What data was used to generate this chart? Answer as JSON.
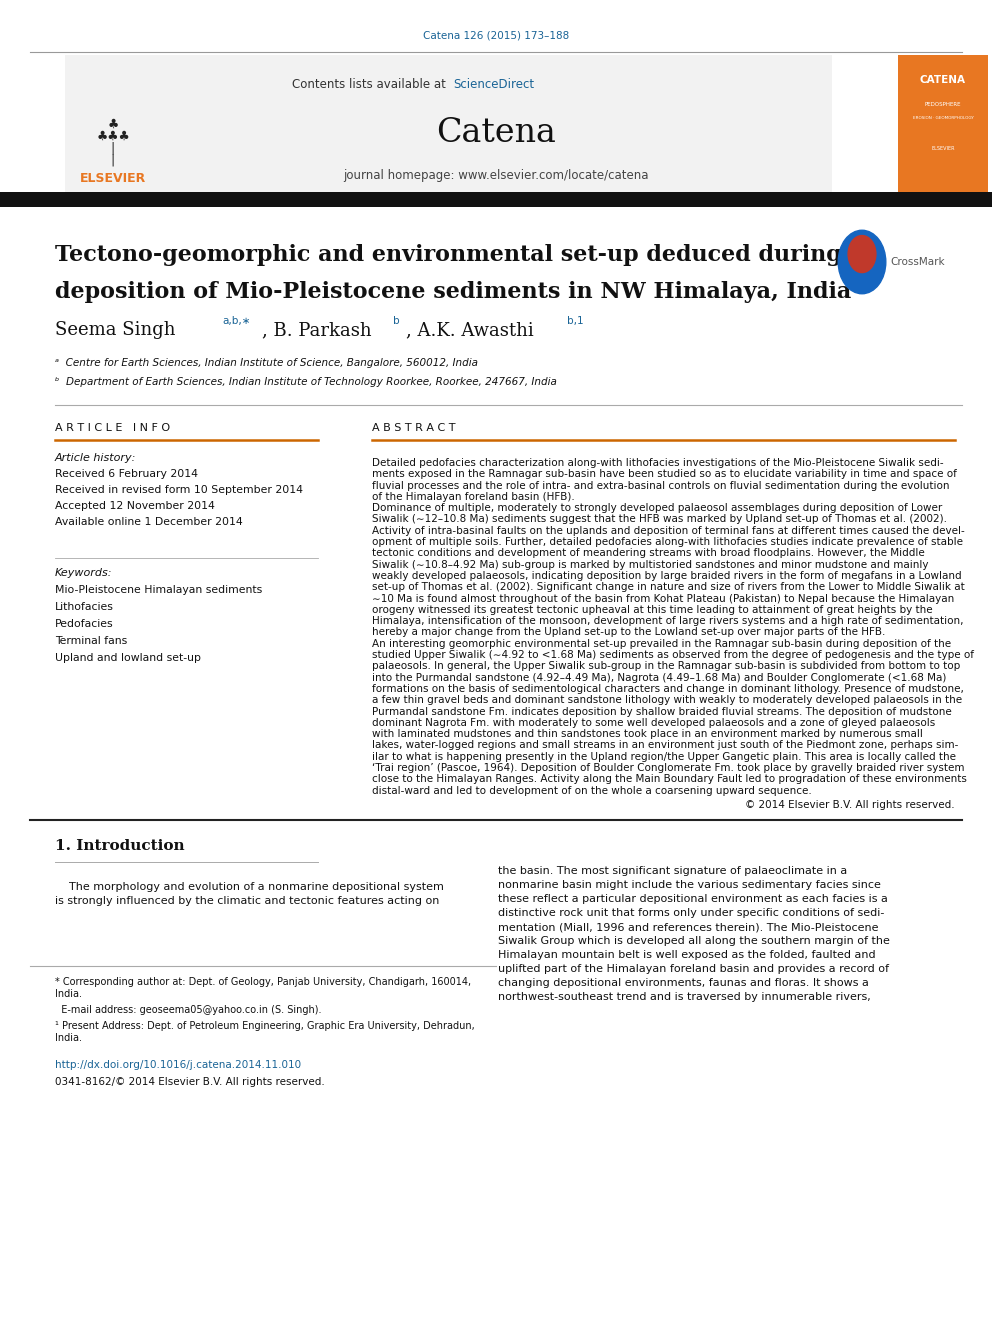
{
  "page_width": 9.92,
  "page_height": 13.23,
  "bg_color": "#ffffff",
  "top_citation": "Catena 126 (2015) 173–188",
  "top_citation_color": "#1a6496",
  "journal_name": "Catena",
  "homepage_text": "journal homepage: www.elsevier.com/locate/catena",
  "affil_a": "ᵃ  Centre for Earth Sciences, Indian Institute of Science, Bangalore, 560012, India",
  "affil_b": "ᵇ  Department of Earth Sciences, Indian Institute of Technology Roorkee, Roorkee, 247667, India",
  "received": "Received 6 February 2014",
  "revised": "Received in revised form 10 September 2014",
  "accepted": "Accepted 12 November 2014",
  "available": "Available online 1 December 2014",
  "keywords": [
    "Mio-Pleistocene Himalayan sediments",
    "Lithofacies",
    "Pedofacies",
    "Terminal fans",
    "Upland and lowland set-up"
  ],
  "copyright_text": "© 2014 Elsevier B.V. All rights reserved.",
  "footer_doi": "http://dx.doi.org/10.1016/j.catena.2014.11.010",
  "footer_issn": "0341-8162/© 2014 Elsevier B.V. All rights reserved.",
  "orange_color": "#E87722",
  "link_color": "#1a6496",
  "text_color": "#111111",
  "abstract_lines": [
    "Detailed pedofacies characterization along-with lithofacies investigations of the Mio-Pleistocene Siwalik sedi-",
    "ments exposed in the Ramnagar sub-basin have been studied so as to elucidate variability in time and space of",
    "fluvial processes and the role of intra- and extra-basinal controls on fluvial sedimentation during the evolution",
    "of the Himalayan foreland basin (HFB).",
    "Dominance of multiple, moderately to strongly developed palaeosol assemblages during deposition of Lower",
    "Siwalik (∼12–10.8 Ma) sediments suggest that the HFB was marked by Upland set-up of Thomas et al. (2002).",
    "Activity of intra-basinal faults on the uplands and deposition of terminal fans at different times caused the devel-",
    "opment of multiple soils. Further, detailed pedofacies along-with lithofacies studies indicate prevalence of stable",
    "tectonic conditions and development of meandering streams with broad floodplains. However, the Middle",
    "Siwalik (∼10.8–4.92 Ma) sub-group is marked by multistoried sandstones and minor mudstone and mainly",
    "weakly developed palaeosols, indicating deposition by large braided rivers in the form of megafans in a Lowland",
    "set-up of Thomas et al. (2002). Significant change in nature and size of rivers from the Lower to Middle Siwalik at",
    "∼10 Ma is found almost throughout of the basin from Kohat Plateau (Pakistan) to Nepal because the Himalayan",
    "orogeny witnessed its greatest tectonic upheaval at this time leading to attainment of great heights by the",
    "Himalaya, intensification of the monsoon, development of large rivers systems and a high rate of sedimentation,",
    "hereby a major change from the Upland set-up to the Lowland set-up over major parts of the HFB.",
    "An interesting geomorphic environmental set-up prevailed in the Ramnagar sub-basin during deposition of the",
    "studied Upper Siwalik (∼4.92 to <1.68 Ma) sediments as observed from the degree of pedogenesis and the type of",
    "palaeosols. In general, the Upper Siwalik sub-group in the Ramnagar sub-basin is subdivided from bottom to top",
    "into the Purmandal sandstone (4.92–4.49 Ma), Nagrota (4.49–1.68 Ma) and Boulder Conglomerate (<1.68 Ma)",
    "formations on the basis of sedimentological characters and change in dominant lithology. Presence of mudstone,",
    "a few thin gravel beds and dominant sandstone lithology with weakly to moderately developed palaeosols in the",
    "Purmandal sandstone Fm. indicates deposition by shallow braided fluvial streams. The deposition of mudstone",
    "dominant Nagrota Fm. with moderately to some well developed palaeosols and a zone of gleyed palaeosols",
    "with laminated mudstones and thin sandstones took place in an environment marked by numerous small",
    "lakes, water-logged regions and small streams in an environment just south of the Piedmont zone, perhaps sim-",
    "ilar to what is happening presently in the Upland region/the Upper Gangetic plain. This area is locally called the",
    "‘Trai region’ (Pascoe, 1964). Deposition of Boulder Conglomerate Fm. took place by gravelly braided river system",
    "close to the Himalayan Ranges. Activity along the Main Boundary Fault led to progradation of these environments",
    "distal-ward and led to development of on the whole a coarsening upward sequence."
  ],
  "intro_left_lines": [
    "    The morphology and evolution of a nonmarine depositional system",
    "is strongly influenced by the climatic and tectonic features acting on"
  ],
  "intro_right_lines": [
    "the basin. The most significant signature of palaeoclimate in a",
    "nonmarine basin might include the various sedimentary facies since",
    "these reflect a particular depositional environment as each facies is a",
    "distinctive rock unit that forms only under specific conditions of sedi-",
    "mentation (Miall, 1996 and references therein). The Mio-Pleistocene",
    "Siwalik Group which is developed all along the southern margin of the",
    "Himalayan mountain belt is well exposed as the folded, faulted and",
    "uplifted part of the Himalayan foreland basin and provides a record of",
    "changing depositional environments, faunas and floras. It shows a",
    "northwest-southeast trend and is traversed by innumerable rivers,"
  ]
}
